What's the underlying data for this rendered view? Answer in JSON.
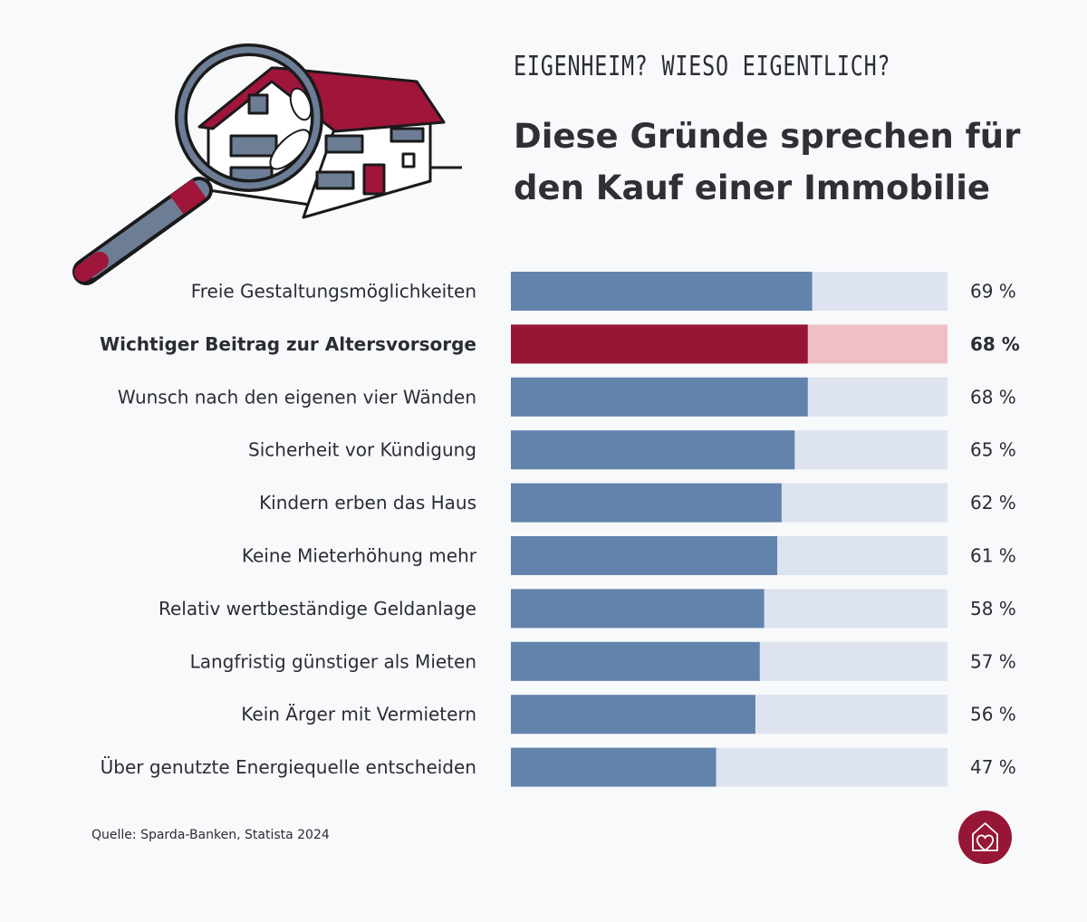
{
  "header": {
    "kicker": "EIGENHEIM? WIESO EIGENTLICH?",
    "title_line1": "Diese Gründe sprechen für",
    "title_line2": "den Kauf einer Immobilie"
  },
  "chart_data": {
    "type": "bar",
    "orientation": "horizontal",
    "categories": [
      "Freie Gestaltungsmöglichkeiten",
      "Wichtiger Beitrag zur Altersvorsorge",
      "Wunsch nach den eigenen vier Wänden",
      "Sicherheit vor Kündigung",
      "Kindern erben das Haus",
      "Keine Mieterhöhung mehr",
      "Relativ wertbeständige Geldanlage",
      "Langfristig günstiger als Mieten",
      "Kein Ärger mit Vermietern",
      "Über genutzte Energiequelle entscheiden"
    ],
    "values": [
      69,
      68,
      68,
      65,
      62,
      61,
      58,
      57,
      56,
      47
    ],
    "value_labels": [
      "69 %",
      "68 %",
      "68 %",
      "65 %",
      "62 %",
      "61 %",
      "58 %",
      "57 %",
      "56 %",
      "47 %"
    ],
    "highlight_index": 1,
    "xlim": [
      0,
      100
    ],
    "unit": "%",
    "grid": false,
    "colors": {
      "bar": "#6283ab",
      "track": "#dde4ef",
      "highlight_bar": "#961636",
      "highlight_track": "#efbfc5"
    }
  },
  "footer": {
    "source": "Quelle: Sparda-Banken, Statista 2024"
  },
  "icons": {
    "illustration": "magnifying-glass-over-house",
    "logo": "house-heart-icon"
  }
}
